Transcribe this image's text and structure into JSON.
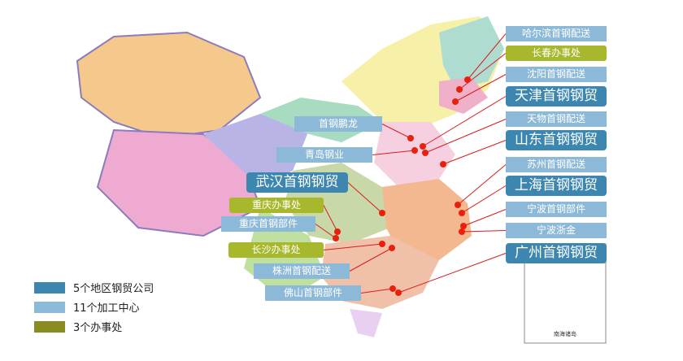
{
  "colors": {
    "company": "#3d86b0",
    "center": "#8cb9d8",
    "office": "#a8b82c",
    "office_legend": "#8a8c22",
    "line": "#d81e1e"
  },
  "labels_right": [
    {
      "text": "哈尔滨首钢配送",
      "kind": "light"
    },
    {
      "text": "长春办事处",
      "kind": "olive"
    },
    {
      "text": "沈阳首钢配送",
      "kind": "light"
    },
    {
      "text": "天津首钢钢贸",
      "kind": "dark"
    },
    {
      "text": "天物首钢配送",
      "kind": "light"
    },
    {
      "text": "山东首钢钢贸",
      "kind": "dark"
    },
    {
      "text": "苏州首钢配送",
      "kind": "light"
    },
    {
      "text": "上海首钢钢贸",
      "kind": "dark"
    },
    {
      "text": "宁波首钢部件",
      "kind": "light"
    },
    {
      "text": "宁波浙金",
      "kind": "light"
    },
    {
      "text": "广州首钢钢贸",
      "kind": "dark"
    }
  ],
  "labels_left": [
    {
      "text": "首钢鹏龙",
      "kind": "light"
    },
    {
      "text": "青岛钢业",
      "kind": "light"
    },
    {
      "text": "武汉首钢钢贸",
      "kind": "dark"
    },
    {
      "text": "重庆办事处",
      "kind": "olive"
    },
    {
      "text": "重庆首钢部件",
      "kind": "light"
    },
    {
      "text": "长沙办事处",
      "kind": "olive"
    },
    {
      "text": "株洲首钢配送",
      "kind": "light"
    },
    {
      "text": "佛山首钢部件",
      "kind": "light"
    }
  ],
  "legend": [
    {
      "text": "5个地区钢贸公司",
      "kind": "company"
    },
    {
      "text": "11个加工中心",
      "kind": "center"
    },
    {
      "text": "3个办事处",
      "kind": "office"
    }
  ],
  "inset_caption": "南海诸岛"
}
